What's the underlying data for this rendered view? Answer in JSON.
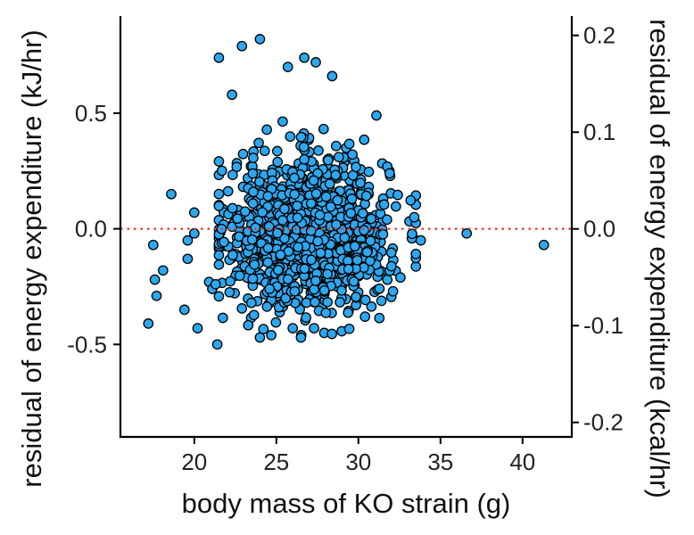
{
  "chart_data": {
    "type": "scatter",
    "xlabel": "body mass of KO strain (g)",
    "ylabel": "residual of energy expenditure (kJ/hr)",
    "ylabel_right": "residual of energy expenditure (kcal/hr)",
    "xlim": [
      15.5,
      43
    ],
    "ylim": [
      -0.9,
      0.92
    ],
    "ylim_right": [
      -0.215,
      0.22
    ],
    "x_ticks": [
      "20",
      "25",
      "30",
      "35",
      "40"
    ],
    "y_ticks": [
      "-0.5",
      "0.0",
      "0.5"
    ],
    "y_ticks_right": [
      "-0.2",
      "-0.1",
      "0.0",
      "0.1",
      "0.2"
    ],
    "reference_line": {
      "y": 0,
      "style": "dotted",
      "color": "#e8322b"
    },
    "grid": false,
    "legend": "none",
    "colors": {
      "point_fill": "#2da7ef",
      "point_edge": "#000000",
      "axis": "#000000"
    },
    "cluster": {
      "x_mean": 27.0,
      "x_sd": 2.4,
      "y_mean": -0.02,
      "y_sd": 0.16,
      "count": 1300
    },
    "outliers": [
      {
        "x": 17.2,
        "y": -0.41
      },
      {
        "x": 17.5,
        "y": -0.07
      },
      {
        "x": 17.6,
        "y": -0.22
      },
      {
        "x": 17.7,
        "y": -0.29
      },
      {
        "x": 18.1,
        "y": -0.18
      },
      {
        "x": 18.6,
        "y": 0.15
      },
      {
        "x": 19.4,
        "y": -0.35
      },
      {
        "x": 19.6,
        "y": -0.05
      },
      {
        "x": 19.6,
        "y": -0.13
      },
      {
        "x": 20.0,
        "y": 0.07
      },
      {
        "x": 20.0,
        "y": -0.02
      },
      {
        "x": 20.2,
        "y": -0.43
      },
      {
        "x": 20.9,
        "y": -0.23
      },
      {
        "x": 21.1,
        "y": -0.26
      },
      {
        "x": 21.3,
        "y": -0.24
      },
      {
        "x": 21.4,
        "y": -0.5
      },
      {
        "x": 21.5,
        "y": 0.74
      },
      {
        "x": 22.3,
        "y": 0.58
      },
      {
        "x": 22.9,
        "y": 0.79
      },
      {
        "x": 24.0,
        "y": 0.82
      },
      {
        "x": 24.0,
        "y": -0.47
      },
      {
        "x": 25.7,
        "y": 0.7
      },
      {
        "x": 26.7,
        "y": 0.74
      },
      {
        "x": 27.4,
        "y": 0.72
      },
      {
        "x": 26.5,
        "y": -0.47
      },
      {
        "x": 26.0,
        "y": -0.43
      },
      {
        "x": 27.3,
        "y": -0.43
      },
      {
        "x": 28.4,
        "y": 0.66
      },
      {
        "x": 30.4,
        "y": -0.38
      },
      {
        "x": 31.1,
        "y": 0.49
      },
      {
        "x": 31.9,
        "y": 0.24
      },
      {
        "x": 33.4,
        "y": 0.05
      },
      {
        "x": 33.8,
        "y": -0.05
      },
      {
        "x": 36.6,
        "y": -0.02
      },
      {
        "x": 41.3,
        "y": -0.07
      }
    ]
  }
}
